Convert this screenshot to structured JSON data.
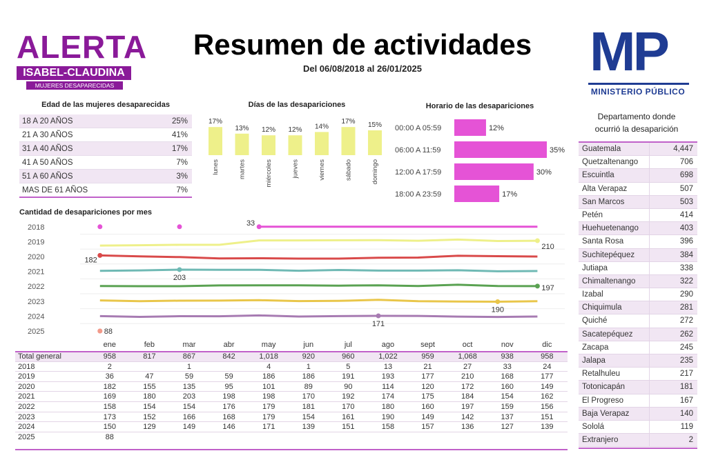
{
  "header": {
    "logo_left": {
      "word": "ALERTA",
      "band": "ISABEL-CLAUDINA",
      "sub": "MUJERES DESAPARECIDAS"
    },
    "title": "Resumen de actividades",
    "subtitle": "Del 06/08/2018 al 26/01/2025",
    "logo_right": {
      "letters": "MP",
      "text": "MINISTERIO PÚBLICO"
    }
  },
  "colors": {
    "purple": "#8a1a99",
    "navy": "#1f3c93",
    "bar_yellow": "#eef08a",
    "bar_magenta": "#e553d6",
    "accent_line": "#c060c9"
  },
  "age_table": {
    "title": "Edad de las mujeres desaparecidas",
    "rows": [
      {
        "label": "18 A 20 AÑOS",
        "value": "25%"
      },
      {
        "label": "21 A 30 AÑOS",
        "value": "41%"
      },
      {
        "label": "31 A 40 AÑOS",
        "value": "17%"
      },
      {
        "label": "41 A 50 AÑOS",
        "value": "7%"
      },
      {
        "label": "51 A 60 AÑOS",
        "value": "3%"
      },
      {
        "label": "MAS DE 61 AÑOS",
        "value": "7%"
      }
    ]
  },
  "dept_table": {
    "title_line1": "Departamento donde",
    "title_line2": "ocurrió la desaparición",
    "rows": [
      {
        "name": "Guatemala",
        "value": "4,447"
      },
      {
        "name": "Quetzaltenango",
        "value": "706"
      },
      {
        "name": "Escuintla",
        "value": "698"
      },
      {
        "name": "Alta Verapaz",
        "value": "507"
      },
      {
        "name": "San Marcos",
        "value": "503"
      },
      {
        "name": "Petén",
        "value": "414"
      },
      {
        "name": "Huehuetenango",
        "value": "403"
      },
      {
        "name": "Santa Rosa",
        "value": "396"
      },
      {
        "name": "Suchitepéquez",
        "value": "384"
      },
      {
        "name": "Jutiapa",
        "value": "338"
      },
      {
        "name": "Chimaltenango",
        "value": "322"
      },
      {
        "name": "Izabal",
        "value": "290"
      },
      {
        "name": "Chiquimula",
        "value": "281"
      },
      {
        "name": "Quiché",
        "value": "272"
      },
      {
        "name": "Sacatepéquez",
        "value": "262"
      },
      {
        "name": "Zacapa",
        "value": "245"
      },
      {
        "name": "Jalapa",
        "value": "235"
      },
      {
        "name": "Retalhuleu",
        "value": "217"
      },
      {
        "name": "Totonicapán",
        "value": "181"
      },
      {
        "name": "El Progreso",
        "value": "167"
      },
      {
        "name": "Baja Verapaz",
        "value": "140"
      },
      {
        "name": "Sololá",
        "value": "119"
      },
      {
        "name": "Extranjero",
        "value": "2"
      }
    ]
  },
  "monthly_table": {
    "months": [
      "ene",
      "feb",
      "mar",
      "abr",
      "may",
      "jun",
      "jul",
      "ago",
      "sept",
      "oct",
      "nov",
      "dic"
    ],
    "rows": [
      {
        "label": "Total general",
        "values": [
          "958",
          "817",
          "867",
          "842",
          "1,018",
          "920",
          "960",
          "1,022",
          "959",
          "1,068",
          "938",
          "958"
        ]
      },
      {
        "label": "2018",
        "values": [
          "2",
          "",
          "1",
          "",
          "4",
          "1",
          "5",
          "13",
          "21",
          "27",
          "33",
          "24"
        ]
      },
      {
        "label": "2019",
        "values": [
          "36",
          "47",
          "59",
          "59",
          "186",
          "186",
          "191",
          "193",
          "177",
          "210",
          "168",
          "177"
        ]
      },
      {
        "label": "2020",
        "values": [
          "182",
          "155",
          "135",
          "95",
          "101",
          "89",
          "90",
          "114",
          "120",
          "172",
          "160",
          "149"
        ]
      },
      {
        "label": "2021",
        "values": [
          "169",
          "180",
          "203",
          "198",
          "198",
          "170",
          "192",
          "174",
          "175",
          "184",
          "154",
          "162"
        ]
      },
      {
        "label": "2022",
        "values": [
          "158",
          "154",
          "154",
          "176",
          "179",
          "181",
          "170",
          "180",
          "160",
          "197",
          "159",
          "156"
        ]
      },
      {
        "label": "2023",
        "values": [
          "173",
          "152",
          "166",
          "168",
          "179",
          "154",
          "161",
          "190",
          "149",
          "142",
          "137",
          "151"
        ]
      },
      {
        "label": "2024",
        "values": [
          "150",
          "129",
          "149",
          "146",
          "171",
          "139",
          "151",
          "158",
          "157",
          "136",
          "127",
          "139"
        ]
      },
      {
        "label": "2025",
        "values": [
          "88",
          "",
          "",
          "",
          "",
          "",
          "",
          "",
          "",
          "",
          "",
          ""
        ]
      }
    ]
  },
  "chart_data": [
    {
      "type": "bar",
      "title": "Días de las desapariciones",
      "categories": [
        "lunes",
        "martes",
        "miércoles",
        "jueves",
        "viernes",
        "sábado",
        "domingo"
      ],
      "values": [
        17,
        13,
        12,
        12,
        14,
        17,
        15
      ],
      "value_labels": [
        "17%",
        "13%",
        "12%",
        "12%",
        "14%",
        "17%",
        "15%"
      ],
      "unit": "%",
      "orientation": "vertical",
      "color": "#eef08a"
    },
    {
      "type": "bar",
      "title": "Horario de las desapariciones",
      "categories": [
        "00:00 A 05:59",
        "06:00 A 11:59",
        "12:00 A 17:59",
        "18:00 A 23:59"
      ],
      "values": [
        12,
        35,
        30,
        17
      ],
      "value_labels": [
        "12%",
        "35%",
        "30%",
        "17%"
      ],
      "unit": "%",
      "orientation": "horizontal",
      "color": "#e553d6"
    },
    {
      "type": "line",
      "title": "Cantidad de desapariciones por mes",
      "rows": [
        "2018",
        "2019",
        "2020",
        "2021",
        "2022",
        "2023",
        "2024",
        "2025"
      ],
      "categories": [
        "ene",
        "feb",
        "mar",
        "abr",
        "may",
        "jun",
        "jul",
        "ago",
        "sept",
        "oct",
        "nov",
        "dic"
      ],
      "series": [
        {
          "name": "2018",
          "color": "#e553d6",
          "values": [
            2,
            null,
            1,
            null,
            4,
            1,
            5,
            13,
            21,
            27,
            33,
            24
          ],
          "label": "33",
          "label_month": "may"
        },
        {
          "name": "2019",
          "color": "#eef08a",
          "values": [
            36,
            47,
            59,
            59,
            186,
            186,
            191,
            193,
            177,
            210,
            168,
            177
          ],
          "label": "210",
          "label_month": "dic"
        },
        {
          "name": "2020",
          "color": "#d94a4a",
          "values": [
            182,
            155,
            135,
            95,
            101,
            89,
            90,
            114,
            120,
            172,
            160,
            149
          ],
          "label": "182",
          "label_month": "ene"
        },
        {
          "name": "2021",
          "color": "#6fb9b4",
          "values": [
            169,
            180,
            203,
            198,
            198,
            170,
            192,
            174,
            175,
            184,
            154,
            162
          ],
          "label": "203",
          "label_month": "mar"
        },
        {
          "name": "2022",
          "color": "#5aa252",
          "values": [
            158,
            154,
            154,
            176,
            179,
            181,
            170,
            180,
            160,
            197,
            159,
            156
          ],
          "label": "197",
          "label_month": "dic"
        },
        {
          "name": "2023",
          "color": "#e9c64a",
          "values": [
            173,
            152,
            166,
            168,
            179,
            154,
            161,
            190,
            149,
            142,
            137,
            151
          ],
          "label": "190",
          "label_month": "nov"
        },
        {
          "name": "2024",
          "color": "#a77bb2",
          "values": [
            150,
            129,
            149,
            146,
            171,
            139,
            151,
            158,
            157,
            136,
            127,
            139
          ],
          "label": "171",
          "label_month": "ago"
        },
        {
          "name": "2025",
          "color": "#f29a8a",
          "values": [
            88,
            null,
            null,
            null,
            null,
            null,
            null,
            null,
            null,
            null,
            null,
            null
          ],
          "label": "88",
          "label_month": "ene"
        }
      ]
    }
  ]
}
